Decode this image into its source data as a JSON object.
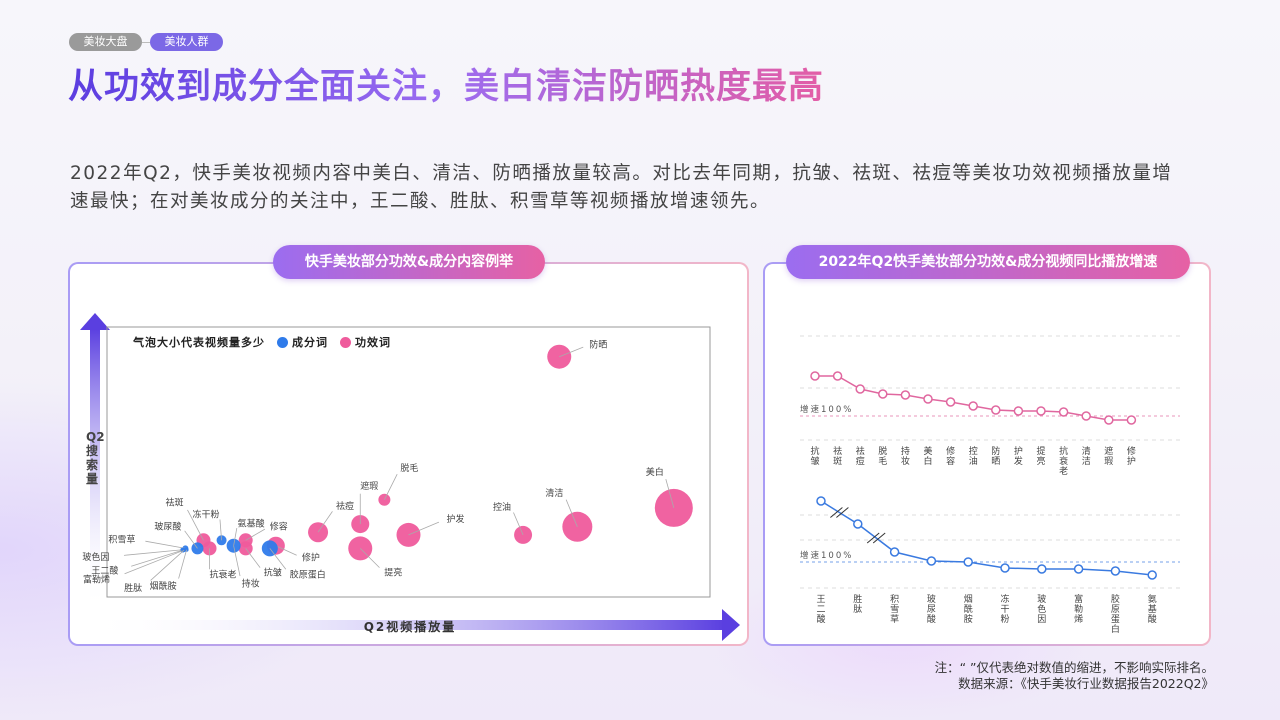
{
  "tags": [
    "美妆大盘",
    "美妆人群"
  ],
  "title": "从功效到成分全面关注，美白清洁防晒热度最高",
  "description": "2022年Q2，快手美妆视频内容中美白、清洁、防晒播放量较高。对比去年同期，抗皱、祛斑、祛痘等美妆功效视频播放量增速最快；在对美妆成分的关注中，王二酸、胜肽、积雪草等视频播放增速领先。",
  "left_panel": {
    "title": "快手美妆部分功效&成分内容例举"
  },
  "right_panel": {
    "title": "2022年Q2快手美妆部分功效&成分视频同比播放增速"
  },
  "note": "注：“ ”仅代表绝对数值的缩进，不影响实际排名。",
  "source": "数据来源：《快手美妆行业数据报告2022Q2》",
  "colors": {
    "ingredient": "#2f7bea",
    "efficacy": "#ef5b9c",
    "accent": "#6a4ce6"
  },
  "chart_data": [
    {
      "type": "scatter",
      "subtype": "bubble",
      "xlabel": "Q2视频播放量",
      "ylabel": "Q2搜索量",
      "legend_title": "气泡大小代表视频量多少",
      "legend": [
        {
          "name": "成分词",
          "color": "#2f7bea"
        },
        {
          "name": "功效词",
          "color": "#ef5b9c"
        }
      ],
      "legend_placement": "top-left",
      "note_scale": "relative, no ticks",
      "points": [
        {
          "label": "防晒",
          "series": "功效词",
          "x": 75,
          "y": 89,
          "size": 12
        },
        {
          "label": "美白",
          "series": "功效词",
          "x": 94,
          "y": 33,
          "size": 19
        },
        {
          "label": "清洁",
          "series": "功效词",
          "x": 78,
          "y": 26,
          "size": 15
        },
        {
          "label": "控油",
          "series": "功效词",
          "x": 69,
          "y": 23,
          "size": 9
        },
        {
          "label": "护发",
          "series": "功效词",
          "x": 50,
          "y": 23,
          "size": 12
        },
        {
          "label": "脱毛",
          "series": "功效词",
          "x": 46,
          "y": 36,
          "size": 6
        },
        {
          "label": "遮瑕",
          "series": "功效词",
          "x": 42,
          "y": 27,
          "size": 9
        },
        {
          "label": "提亮",
          "series": "功效词",
          "x": 42,
          "y": 18,
          "size": 12
        },
        {
          "label": "祛痘",
          "series": "功效词",
          "x": 35,
          "y": 24,
          "size": 10
        },
        {
          "label": "修护",
          "series": "功效词",
          "x": 28,
          "y": 19,
          "size": 9
        },
        {
          "label": "胶原蛋白",
          "series": "成分词",
          "x": 27,
          "y": 18,
          "size": 8
        },
        {
          "label": "修容",
          "series": "功效词",
          "x": 23,
          "y": 21,
          "size": 7
        },
        {
          "label": "抗皱",
          "series": "功效词",
          "x": 23,
          "y": 18,
          "size": 7
        },
        {
          "label": "氨基酸",
          "series": "成分词",
          "x": 21,
          "y": 19,
          "size": 7
        },
        {
          "label": "持妆",
          "series": "成分词",
          "x": 21,
          "y": 19,
          "size": 1
        },
        {
          "label": "冻干粉",
          "series": "成分词",
          "x": 19,
          "y": 21,
          "size": 5
        },
        {
          "label": "祛斑",
          "series": "功效词",
          "x": 16,
          "y": 21,
          "size": 7
        },
        {
          "label": "抗衰老",
          "series": "功效词",
          "x": 17,
          "y": 18,
          "size": 7
        },
        {
          "label": "玻尿酸",
          "series": "成分词",
          "x": 15,
          "y": 18,
          "size": 6
        },
        {
          "label": "积雪草",
          "series": "成分词",
          "x": 13,
          "y": 18,
          "size": 3
        },
        {
          "label": "玻色因",
          "series": "成分词",
          "x": 12.5,
          "y": 17.5,
          "size": 2
        },
        {
          "label": "王二酸",
          "series": "成分词",
          "x": 12.5,
          "y": 17.3,
          "size": 2
        },
        {
          "label": "富勒烯",
          "series": "成分词",
          "x": 12.6,
          "y": 17.2,
          "size": 2
        },
        {
          "label": "胜肽",
          "series": "成分词",
          "x": 12.8,
          "y": 17.4,
          "size": 2
        },
        {
          "label": "烟酰胺",
          "series": "成分词",
          "x": 13.2,
          "y": 17.5,
          "size": 2
        }
      ]
    },
    {
      "type": "line",
      "series_name": "功效",
      "reference_label": "增速100%",
      "reference": 100,
      "categories": [
        "抗皱",
        "祛斑",
        "祛痘",
        "脱毛",
        "持妆",
        "美白",
        "修容",
        "控油",
        "防晒",
        "护发",
        "提亮",
        "抗衰老",
        "清洁",
        "遮瑕",
        "修护"
      ],
      "values": [
        300,
        300,
        235,
        210,
        205,
        185,
        170,
        150,
        130,
        125,
        125,
        120,
        100,
        80,
        80
      ],
      "color": "#e0679f"
    },
    {
      "type": "line",
      "series_name": "成分",
      "reference_label": "增速100%",
      "reference": 100,
      "axis_breaks_after": [
        0,
        1
      ],
      "categories": [
        "王二酸",
        "胜肽",
        "积雪草",
        "玻尿酸",
        "烟酰胺",
        "冻干粉",
        "玻色因",
        "富勒烯",
        "胶原蛋白",
        "氨基酸"
      ],
      "values": [
        405,
        290,
        150,
        105,
        100,
        70,
        65,
        65,
        55,
        35
      ],
      "color": "#3a7ae0"
    }
  ]
}
